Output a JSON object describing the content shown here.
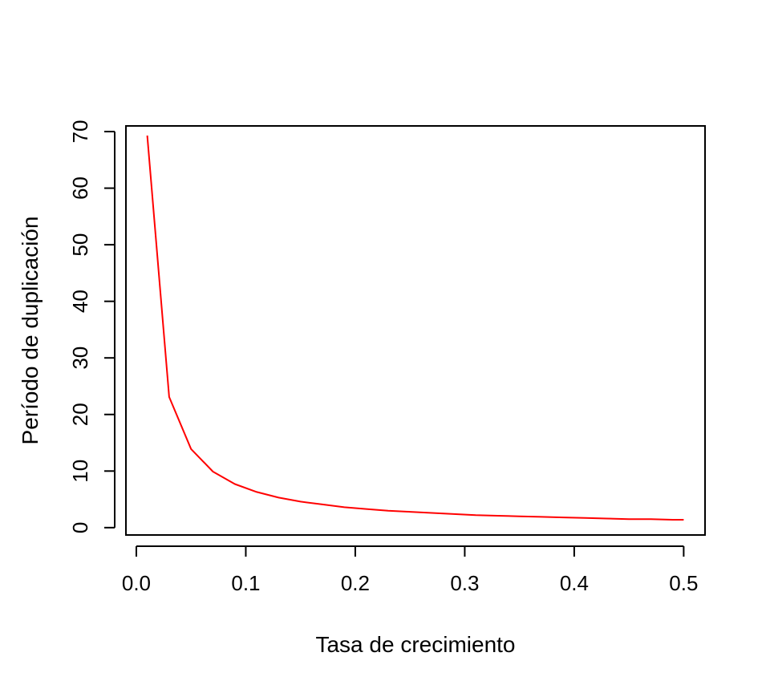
{
  "chart_data": {
    "type": "line",
    "title": "",
    "xlabel": "Tasa de crecimiento",
    "ylabel": "Período de duplicación",
    "xlim": [
      -0.0095,
      0.5195
    ],
    "ylim": [
      -1.3,
      71.0
    ],
    "x_ticks": [
      0.0,
      0.1,
      0.2,
      0.3,
      0.4,
      0.5
    ],
    "x_tick_labels": [
      "0.0",
      "0.1",
      "0.2",
      "0.3",
      "0.4",
      "0.5"
    ],
    "y_ticks": [
      0,
      10,
      20,
      30,
      40,
      50,
      60,
      70
    ],
    "y_tick_labels": [
      "0",
      "10",
      "20",
      "30",
      "40",
      "50",
      "60",
      "70"
    ],
    "grid": false,
    "legend": "none",
    "series": [
      {
        "color": "#ff0000",
        "x": [
          0.01,
          0.03,
          0.05,
          0.07,
          0.09,
          0.11,
          0.13,
          0.15,
          0.17,
          0.19,
          0.21,
          0.23,
          0.25,
          0.27,
          0.29,
          0.31,
          0.33,
          0.35,
          0.37,
          0.39,
          0.41,
          0.43,
          0.45,
          0.47,
          0.49,
          0.5
        ],
        "y": [
          69.3,
          23.1,
          13.9,
          9.9,
          7.7,
          6.3,
          5.3,
          4.6,
          4.1,
          3.6,
          3.3,
          3.0,
          2.8,
          2.6,
          2.4,
          2.2,
          2.1,
          2.0,
          1.9,
          1.8,
          1.7,
          1.6,
          1.5,
          1.5,
          1.4,
          1.4
        ]
      }
    ]
  }
}
